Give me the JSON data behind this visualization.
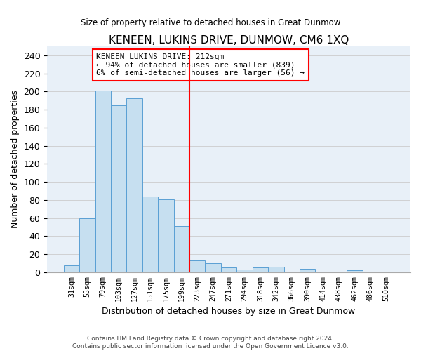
{
  "title": "KENEEN, LUKINS DRIVE, DUNMOW, CM6 1XQ",
  "subtitle": "Size of property relative to detached houses in Great Dunmow",
  "xlabel": "Distribution of detached houses by size in Great Dunmow",
  "ylabel": "Number of detached properties",
  "bar_labels": [
    "31sqm",
    "55sqm",
    "79sqm",
    "103sqm",
    "127sqm",
    "151sqm",
    "175sqm",
    "199sqm",
    "223sqm",
    "247sqm",
    "271sqm",
    "294sqm",
    "318sqm",
    "342sqm",
    "366sqm",
    "390sqm",
    "414sqm",
    "438sqm",
    "462sqm",
    "486sqm",
    "510sqm"
  ],
  "bar_values": [
    8,
    60,
    201,
    185,
    193,
    84,
    81,
    51,
    13,
    10,
    5,
    3,
    5,
    6,
    0,
    4,
    0,
    0,
    2,
    0,
    1
  ],
  "bar_color": "#c6dff0",
  "bar_edge_color": "#5a9fd4",
  "vline_x": 7.5,
  "vline_color": "red",
  "ylim": [
    0,
    250
  ],
  "yticks": [
    0,
    20,
    40,
    60,
    80,
    100,
    120,
    140,
    160,
    180,
    200,
    220,
    240
  ],
  "annotation_title": "KENEEN LUKINS DRIVE: 212sqm",
  "annotation_line1": "← 94% of detached houses are smaller (839)",
  "annotation_line2": "6% of semi-detached houses are larger (56) →",
  "annotation_box_color": "#ffffff",
  "annotation_box_edge": "red",
  "footer_line1": "Contains HM Land Registry data © Crown copyright and database right 2024.",
  "footer_line2": "Contains public sector information licensed under the Open Government Licence v3.0.",
  "background_color": "#ffffff",
  "grid_color": "#cccccc"
}
